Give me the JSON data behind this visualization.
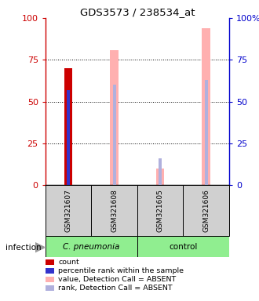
{
  "title": "GDS3573 / 238534_at",
  "samples": [
    "GSM321607",
    "GSM321608",
    "GSM321605",
    "GSM321606"
  ],
  "count_bars": [
    70,
    null,
    null,
    null
  ],
  "percentile_rank_bars": [
    57,
    null,
    null,
    null
  ],
  "value_absent_bars": [
    null,
    81,
    10,
    94
  ],
  "rank_absent_bars": [
    null,
    60,
    16,
    63
  ],
  "count_color": "#cc0000",
  "percentile_color": "#3333cc",
  "value_absent_color": "#ffb0b0",
  "rank_absent_color": "#b0b0dd",
  "left_axis_color": "#cc0000",
  "right_axis_color": "#0000cc",
  "yticks": [
    0,
    25,
    50,
    75,
    100
  ],
  "sample_box_color": "#d0d0d0",
  "cpneumonia_color": "#90ee90",
  "control_color": "#90ee90",
  "legend_labels": [
    "count",
    "percentile rank within the sample",
    "value, Detection Call = ABSENT",
    "rank, Detection Call = ABSENT"
  ],
  "legend_colors": [
    "#cc0000",
    "#3333cc",
    "#ffb0b0",
    "#b0b0dd"
  ]
}
